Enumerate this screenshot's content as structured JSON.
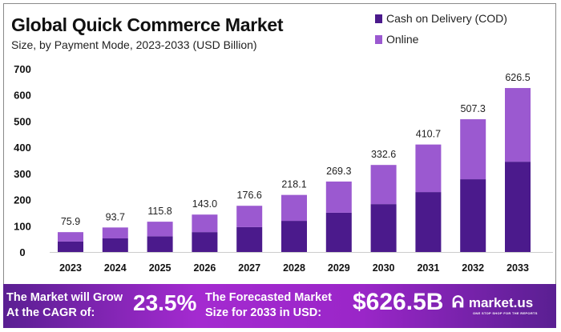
{
  "chart_data": {
    "type": "bar",
    "stacked": true,
    "title": "Global Quick Commerce Market",
    "subtitle": "Size, by Payment Mode, 2023-2033 (USD Billion)",
    "xlabel": "",
    "ylabel": "",
    "categories": [
      "2023",
      "2024",
      "2025",
      "2026",
      "2027",
      "2028",
      "2029",
      "2030",
      "2031",
      "2032",
      "2033"
    ],
    "series": [
      {
        "name": "Cash on Delivery (COD)",
        "color": "#4b1a8c",
        "values": [
          40,
          52,
          60,
          76,
          95,
          119,
          150,
          183,
          229,
          278,
          345
        ]
      },
      {
        "name": "Online",
        "color": "#9b59d0",
        "values": [
          35.9,
          41.7,
          55.8,
          67.0,
          81.6,
          99.1,
          119.3,
          149.6,
          181.7,
          229.3,
          281.5
        ]
      }
    ],
    "totals": [
      "75.9",
      "93.7",
      "115.8",
      "143.0",
      "176.6",
      "218.1",
      "269.3",
      "332.6",
      "410.7",
      "507.3",
      "626.5"
    ],
    "ylim": [
      0,
      700
    ],
    "yticks": [
      "0",
      "100",
      "200",
      "300",
      "400",
      "500",
      "600",
      "700"
    ],
    "grid": false,
    "legend_placement": "top-right"
  },
  "banner": {
    "cagr_label_1": "The Market will Grow",
    "cagr_label_2": "At the CAGR of:",
    "cagr_value": "23.5%",
    "forecast_label_1": "The Forecasted Market",
    "forecast_label_2": "Size for 2033 in USD:",
    "forecast_value": "$626.5B",
    "logo_text": "market.us",
    "logo_tagline": "ONE STOP SHOP FOR THE REPORTS",
    "logo_icon": "market-us-logo-icon"
  }
}
